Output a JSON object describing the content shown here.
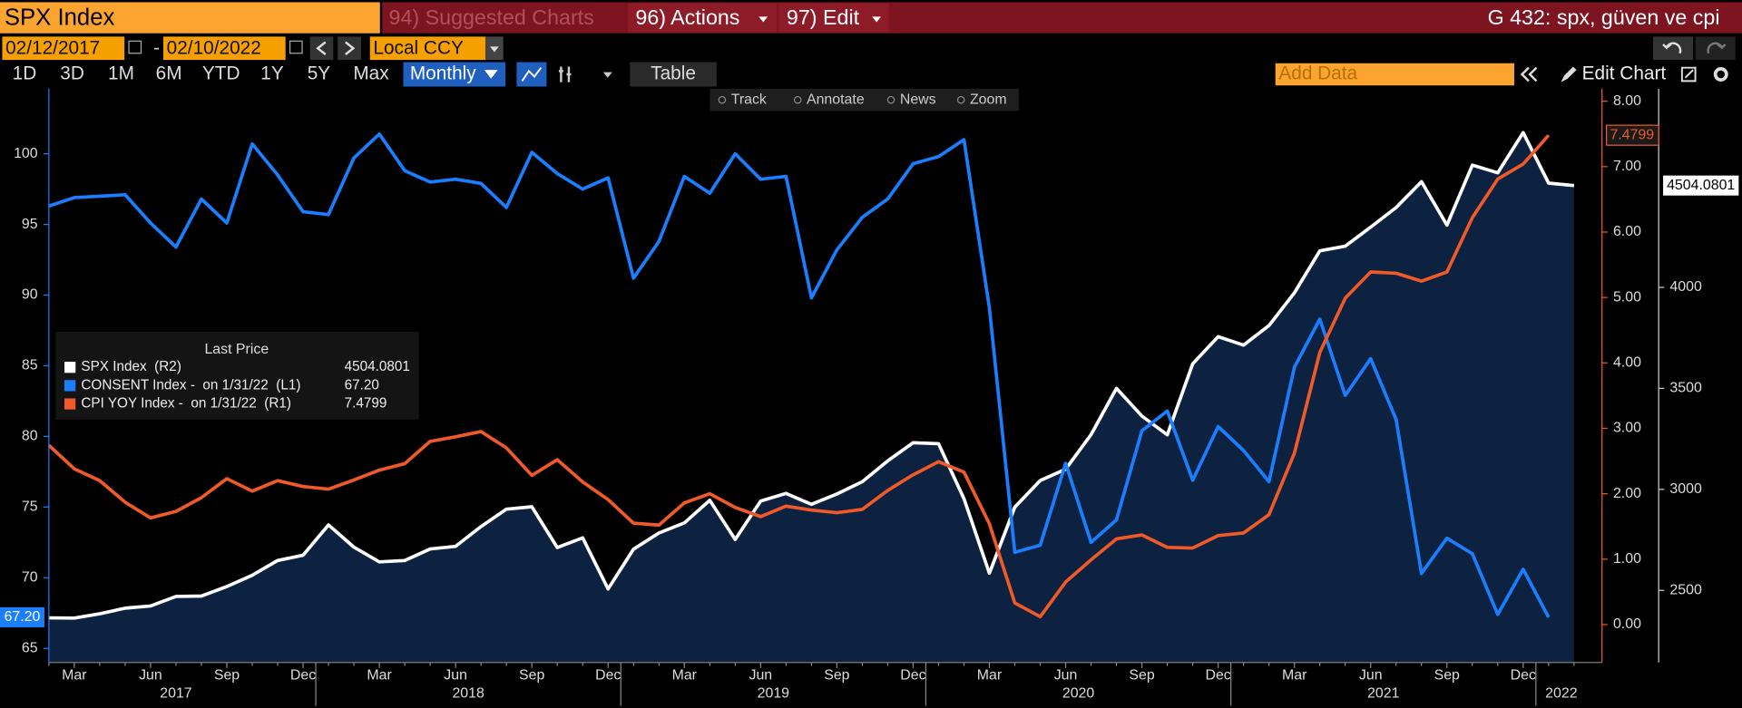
{
  "toolbar": {
    "security": "SPX Index",
    "menu": [
      "94) Suggested Charts",
      "96) Actions",
      "97) Edit"
    ],
    "chart_name": "G 432: spx, güven ve cpi",
    "start_date": "02/12/2017",
    "date_separator": "-",
    "end_date": "02/10/2022",
    "currency": "Local CCY",
    "periods": [
      "1D",
      "3D",
      "1M",
      "6M",
      "YTD",
      "1Y",
      "5Y",
      "Max"
    ],
    "frequency": "Monthly",
    "table": "Table",
    "add_data": "Add Data",
    "edit_chart": "Edit Chart",
    "tools": [
      "Track",
      "Annotate",
      "News",
      "Zoom"
    ]
  },
  "chart_data": {
    "type": "line",
    "legend_title": "Last Price",
    "categories": [
      null,
      "Mar",
      null,
      null,
      "Jun",
      null,
      null,
      "Sep",
      null,
      null,
      "Dec",
      null,
      null,
      "Mar",
      null,
      null,
      "Jun",
      null,
      null,
      "Sep",
      null,
      null,
      "Dec",
      null,
      null,
      "Mar",
      null,
      null,
      "Jun",
      null,
      null,
      "Sep",
      null,
      null,
      "Dec",
      null,
      null,
      "Mar",
      null,
      null,
      "Jun",
      null,
      null,
      "Sep",
      null,
      null,
      "Dec",
      null,
      null,
      "Mar",
      null,
      null,
      "Jun",
      null,
      null,
      "Sep",
      null,
      null,
      "Dec",
      null,
      null
    ],
    "years": [
      "2017",
      "2018",
      "2019",
      "2020",
      "2021",
      "2022"
    ],
    "series": [
      {
        "name": "SPX Index  (R2)",
        "color": "#ffffff",
        "fill": "#0d2140",
        "axis": "y3",
        "last_label": "4504.0801",
        "values": [
          2364,
          2363,
          2384,
          2412,
          2423,
          2470,
          2472,
          2519,
          2575,
          2648,
          2674,
          2824,
          2714,
          2641,
          2648,
          2705,
          2718,
          2816,
          2902,
          2914,
          2712,
          2760,
          2507,
          2704,
          2784,
          2834,
          2946,
          2752,
          2942,
          2980,
          2926,
          2977,
          3038,
          3141,
          3231,
          3226,
          2954,
          2585,
          2912,
          3044,
          3100,
          3271,
          3500,
          3363,
          3270,
          3622,
          3756,
          3714,
          3811,
          3973,
          4181,
          4204,
          4298,
          4395,
          4523,
          4308,
          4605,
          4567,
          4766,
          4516,
          4504.0801
        ]
      },
      {
        "name": "CONSENT Index -  on 1/31/22  (L1)",
        "color": "#1a7fff",
        "axis": "y",
        "last_label": "67.20",
        "values": [
          96.3,
          96.9,
          97.0,
          97.1,
          95.1,
          93.4,
          96.8,
          95.1,
          100.7,
          98.5,
          95.9,
          95.7,
          99.7,
          101.4,
          98.8,
          98.0,
          98.2,
          97.9,
          96.2,
          100.1,
          98.6,
          97.5,
          98.3,
          91.2,
          93.8,
          98.4,
          97.2,
          100.0,
          98.2,
          98.4,
          89.8,
          93.2,
          95.5,
          96.8,
          99.3,
          99.8,
          101.0,
          89.1,
          71.8,
          72.3,
          78.1,
          72.5,
          74.1,
          80.4,
          81.8,
          76.9,
          80.7,
          79.0,
          76.8,
          84.9,
          88.3,
          82.9,
          85.5,
          81.2,
          70.3,
          72.8,
          71.7,
          67.4,
          70.6,
          67.2,
          null
        ]
      },
      {
        "name": "CPI YOY Index -  on 1/31/22  (R1)",
        "color": "#f05a28",
        "axis": "y2",
        "last_label": "7.4799",
        "values": [
          2.74,
          2.38,
          2.2,
          1.87,
          1.63,
          1.73,
          1.94,
          2.23,
          2.04,
          2.2,
          2.11,
          2.07,
          2.21,
          2.36,
          2.46,
          2.8,
          2.87,
          2.95,
          2.7,
          2.28,
          2.52,
          2.18,
          1.91,
          1.55,
          1.52,
          1.86,
          2.0,
          1.79,
          1.65,
          1.81,
          1.75,
          1.71,
          1.76,
          2.05,
          2.29,
          2.49,
          2.33,
          1.54,
          0.33,
          0.12,
          0.65,
          0.99,
          1.31,
          1.37,
          1.18,
          1.17,
          1.36,
          1.4,
          1.68,
          2.62,
          4.16,
          4.99,
          5.39,
          5.37,
          5.25,
          5.39,
          6.22,
          6.81,
          7.04,
          7.4799,
          null
        ]
      }
    ],
    "ylim": [
      64,
      104.6
    ],
    "yticks": [
      65,
      70,
      75,
      80,
      85,
      90,
      95,
      100
    ],
    "y2lim": [
      -0.58,
      8.19
    ],
    "y2ticks": [
      {
        "value": 0,
        "label": "0.00"
      },
      {
        "value": 1,
        "label": "1.00"
      },
      {
        "value": 2,
        "label": "2.00"
      },
      {
        "value": 3,
        "label": "3.00"
      },
      {
        "value": 4,
        "label": "4.00"
      },
      {
        "value": 5,
        "label": "5.00"
      },
      {
        "value": 6,
        "label": "6.00"
      },
      {
        "value": 7,
        "label": "7.00"
      },
      {
        "value": 8,
        "label": "8.00"
      }
    ],
    "y3lim": [
      2143,
      4983
    ],
    "y3ticks": [
      2500,
      3000,
      3500,
      4000
    ],
    "grid": false
  }
}
